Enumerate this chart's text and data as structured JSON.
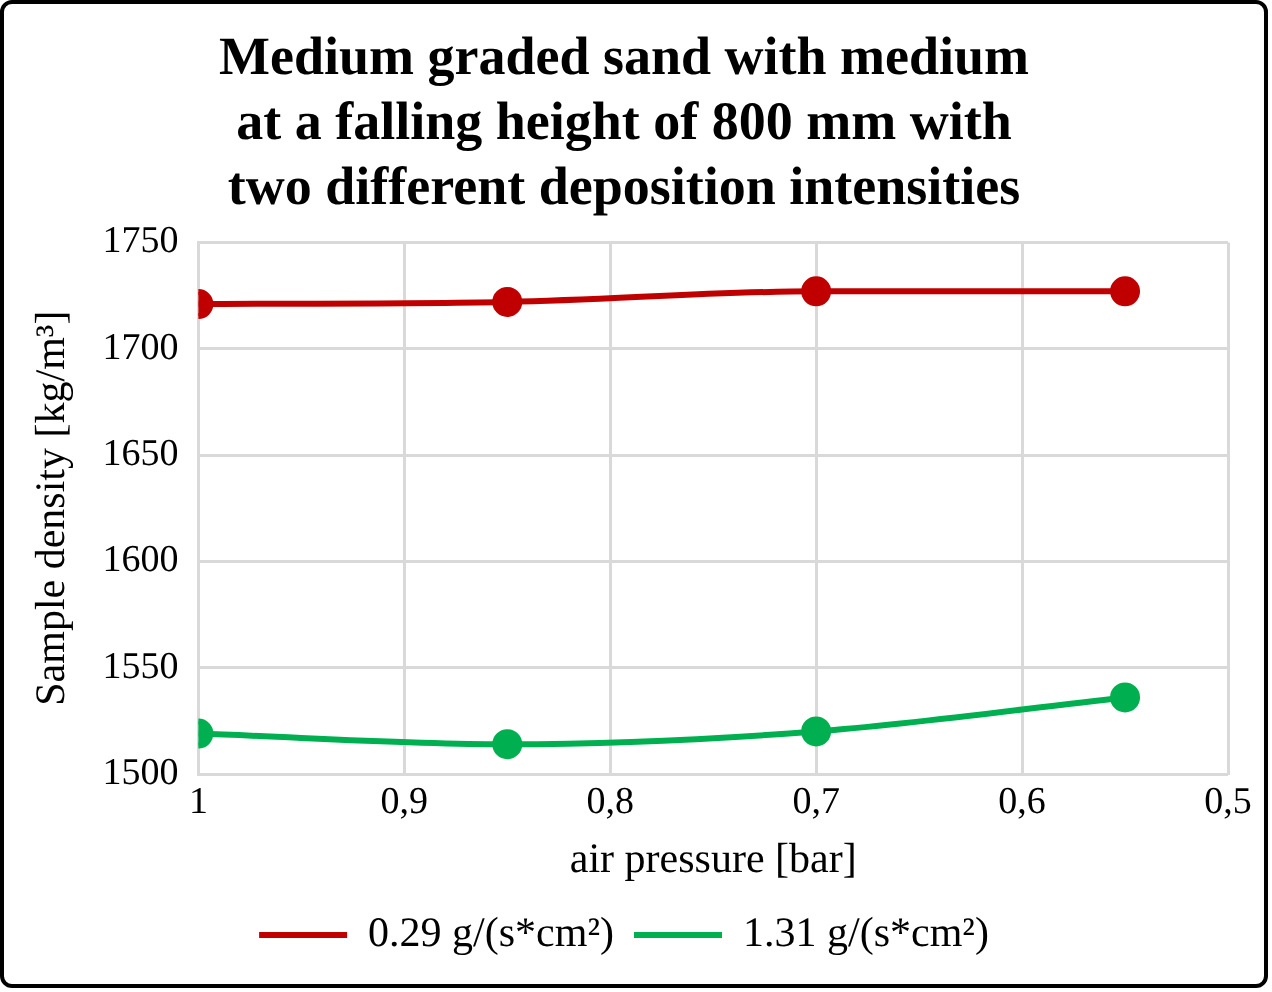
{
  "chart_data": {
    "type": "line",
    "title": "Medium graded sand with medium\nat a falling height of 800 mm with\ntwo different deposition intensities",
    "xlabel": "air pressure [bar]",
    "ylabel": "Sample density [kg/m³]",
    "x": [
      1,
      0.85,
      0.7,
      0.55
    ],
    "series": [
      {
        "name": "0.29 g/(s*cm²)",
        "color": "#c00000",
        "values": [
          1721,
          1722,
          1727,
          1727
        ]
      },
      {
        "name": "1.31 g/(s*cm²)",
        "color": "#00b050",
        "values": [
          1519,
          1514,
          1520,
          1536
        ]
      }
    ],
    "xlim": [
      1,
      0.5
    ],
    "xticks": [
      1,
      {
        "value": 0.9,
        "label": "0,9"
      },
      {
        "value": 0.8,
        "label": "0,8"
      },
      {
        "value": 0.7,
        "label": "0,7"
      },
      {
        "value": 0.6,
        "label": "0,6"
      },
      {
        "value": 0.5,
        "label": "0,5"
      }
    ],
    "ylim": [
      1500,
      1750
    ],
    "yticks": [
      1500,
      1550,
      1600,
      1650,
      1700,
      1750
    ],
    "grid": true,
    "legend": "bottom",
    "marker": "circle",
    "line_style": "solid"
  }
}
